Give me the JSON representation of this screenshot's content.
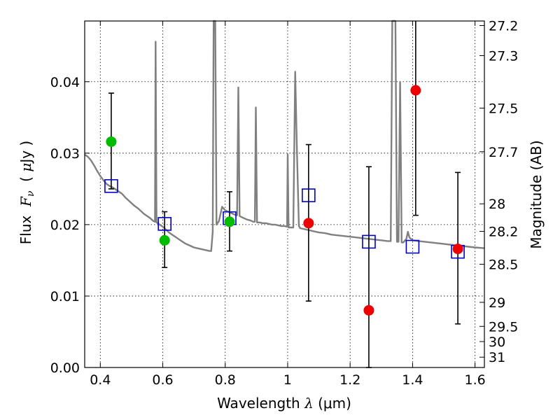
{
  "chart_data": {
    "type": "scatter",
    "xlabel": {
      "prefix": "Wavelength ",
      "symbol": "λ",
      "unit": " (μm)"
    },
    "ylabel": {
      "prefix": "Flux  ",
      "symbol": "F",
      "subscript": "ν",
      "open": "  ( ",
      "mu": "μ",
      "unit": "Jy )"
    },
    "y2label": "Magnitude (AB)",
    "xlim": [
      0.35,
      1.63
    ],
    "ylim": [
      0.0,
      0.0485
    ],
    "grid": true,
    "colors": {
      "spectrum": "#808080",
      "model": "#0000cc",
      "green": "#00bb00",
      "red": "#ee0000",
      "errorbar": "#000000"
    },
    "x_ticks": [
      {
        "value": 0.4,
        "label": "0.4"
      },
      {
        "value": 0.6,
        "label": "0.6"
      },
      {
        "value": 0.8,
        "label": "0.8"
      },
      {
        "value": 1.0,
        "label": "1"
      },
      {
        "value": 1.2,
        "label": "1.2"
      },
      {
        "value": 1.4,
        "label": "1.4"
      },
      {
        "value": 1.6,
        "label": "1.6"
      }
    ],
    "y_ticks": [
      {
        "value": 0.0,
        "label": "0.00"
      },
      {
        "value": 0.01,
        "label": "0.01"
      },
      {
        "value": 0.02,
        "label": "0.02"
      },
      {
        "value": 0.03,
        "label": "0.03"
      },
      {
        "value": 0.04,
        "label": "0.04"
      }
    ],
    "magnitude_ticks": [
      {
        "mag": 27.2,
        "label": "27.2"
      },
      {
        "mag": 27.3,
        "label": "27.3"
      },
      {
        "mag": 27.5,
        "label": "27.5"
      },
      {
        "mag": 27.7,
        "label": "27.7"
      },
      {
        "mag": 28.0,
        "label": "28"
      },
      {
        "mag": 28.2,
        "label": "28.2"
      },
      {
        "mag": 28.5,
        "label": "28.5"
      },
      {
        "mag": 29.0,
        "label": "29"
      },
      {
        "mag": 29.5,
        "label": "29.5"
      },
      {
        "mag": 30.0,
        "label": "30"
      },
      {
        "mag": 31.0,
        "label": "31"
      }
    ],
    "model_photometry": [
      {
        "x": 0.435,
        "y": 0.0254
      },
      {
        "x": 0.606,
        "y": 0.0201
      },
      {
        "x": 0.814,
        "y": 0.0209
      },
      {
        "x": 1.067,
        "y": 0.0241
      },
      {
        "x": 1.26,
        "y": 0.0176
      },
      {
        "x": 1.4,
        "y": 0.0169
      },
      {
        "x": 1.545,
        "y": 0.0162
      }
    ],
    "observed_photometry": [
      {
        "x": 0.435,
        "y": 0.0316,
        "yerr_low": 0.025,
        "yerr_high": 0.0384,
        "color": "green"
      },
      {
        "x": 0.606,
        "y": 0.0178,
        "yerr_low": 0.014,
        "yerr_high": 0.0218,
        "color": "green"
      },
      {
        "x": 0.814,
        "y": 0.0204,
        "yerr_low": 0.0163,
        "yerr_high": 0.0246,
        "color": "green"
      },
      {
        "x": 1.067,
        "y": 0.0202,
        "yerr_low": 0.0093,
        "yerr_high": 0.0312,
        "color": "red"
      },
      {
        "x": 1.26,
        "y": 0.008,
        "yerr_low": 0.0,
        "yerr_high": 0.0281,
        "color": "red"
      },
      {
        "x": 1.41,
        "y": 0.0388,
        "yerr_low": 0.0213,
        "yerr_high": 0.0485,
        "color": "red"
      },
      {
        "x": 1.545,
        "y": 0.0166,
        "yerr_low": 0.0061,
        "yerr_high": 0.0273,
        "color": "red"
      }
    ],
    "spectrum": [
      [
        0.35,
        0.0298
      ],
      [
        0.36,
        0.0295
      ],
      [
        0.37,
        0.029
      ],
      [
        0.38,
        0.0283
      ],
      [
        0.39,
        0.0275
      ],
      [
        0.4,
        0.0268
      ],
      [
        0.41,
        0.0262
      ],
      [
        0.42,
        0.0257
      ],
      [
        0.43,
        0.0254
      ],
      [
        0.44,
        0.0252
      ],
      [
        0.45,
        0.0249
      ],
      [
        0.46,
        0.0246
      ],
      [
        0.47,
        0.0243
      ],
      [
        0.48,
        0.0238
      ],
      [
        0.49,
        0.0234
      ],
      [
        0.5,
        0.023
      ],
      [
        0.51,
        0.0226
      ],
      [
        0.52,
        0.0223
      ],
      [
        0.53,
        0.0219
      ],
      [
        0.54,
        0.0215
      ],
      [
        0.55,
        0.0212
      ],
      [
        0.56,
        0.0209
      ],
      [
        0.57,
        0.0205
      ],
      [
        0.575,
        0.0204
      ],
      [
        0.577,
        0.0456
      ],
      [
        0.58,
        0.0203
      ],
      [
        0.59,
        0.02
      ],
      [
        0.6,
        0.0197
      ],
      [
        0.61,
        0.0193
      ],
      [
        0.62,
        0.0189
      ],
      [
        0.63,
        0.0186
      ],
      [
        0.64,
        0.0183
      ],
      [
        0.65,
        0.018
      ],
      [
        0.66,
        0.0177
      ],
      [
        0.67,
        0.0174
      ],
      [
        0.68,
        0.0172
      ],
      [
        0.69,
        0.017
      ],
      [
        0.7,
        0.0168
      ],
      [
        0.71,
        0.0167
      ],
      [
        0.72,
        0.0166
      ],
      [
        0.73,
        0.0165
      ],
      [
        0.74,
        0.0164
      ],
      [
        0.75,
        0.0163
      ],
      [
        0.755,
        0.0163
      ],
      [
        0.76,
        0.019
      ],
      [
        0.763,
        0.0485
      ],
      [
        0.768,
        0.0485
      ],
      [
        0.772,
        0.02
      ],
      [
        0.78,
        0.0205
      ],
      [
        0.79,
        0.0225
      ],
      [
        0.8,
        0.022
      ],
      [
        0.81,
        0.0218
      ],
      [
        0.82,
        0.0216
      ],
      [
        0.83,
        0.0214
      ],
      [
        0.838,
        0.0213
      ],
      [
        0.842,
        0.0392
      ],
      [
        0.846,
        0.0212
      ],
      [
        0.85,
        0.0211
      ],
      [
        0.86,
        0.0209
      ],
      [
        0.87,
        0.0207
      ],
      [
        0.88,
        0.0206
      ],
      [
        0.89,
        0.0204
      ],
      [
        0.895,
        0.0204
      ],
      [
        0.898,
        0.0364
      ],
      [
        0.902,
        0.0203
      ],
      [
        0.91,
        0.0203
      ],
      [
        0.92,
        0.0202
      ],
      [
        0.93,
        0.0202
      ],
      [
        0.94,
        0.0201
      ],
      [
        0.95,
        0.02
      ],
      [
        0.96,
        0.02
      ],
      [
        0.97,
        0.0199
      ],
      [
        0.98,
        0.0198
      ],
      [
        0.99,
        0.0198
      ],
      [
        0.998,
        0.0197
      ],
      [
        1.0,
        0.0298
      ],
      [
        1.003,
        0.0196
      ],
      [
        1.01,
        0.0196
      ],
      [
        1.018,
        0.0196
      ],
      [
        1.024,
        0.0414
      ],
      [
        1.03,
        0.03
      ],
      [
        1.036,
        0.0198
      ],
      [
        1.04,
        0.0195
      ],
      [
        1.05,
        0.0194
      ],
      [
        1.06,
        0.0193
      ],
      [
        1.07,
        0.0192
      ],
      [
        1.08,
        0.0191
      ],
      [
        1.09,
        0.019
      ],
      [
        1.1,
        0.0189
      ],
      [
        1.12,
        0.0188
      ],
      [
        1.14,
        0.0186
      ],
      [
        1.16,
        0.0185
      ],
      [
        1.18,
        0.0184
      ],
      [
        1.2,
        0.0183
      ],
      [
        1.22,
        0.0182
      ],
      [
        1.24,
        0.0181
      ],
      [
        1.26,
        0.018
      ],
      [
        1.28,
        0.0179
      ],
      [
        1.3,
        0.0178
      ],
      [
        1.32,
        0.0177
      ],
      [
        1.33,
        0.0177
      ],
      [
        1.335,
        0.0485
      ],
      [
        1.345,
        0.0485
      ],
      [
        1.35,
        0.0176
      ],
      [
        1.355,
        0.0176
      ],
      [
        1.36,
        0.04
      ],
      [
        1.365,
        0.0175
      ],
      [
        1.37,
        0.0175
      ],
      [
        1.38,
        0.018
      ],
      [
        1.385,
        0.019
      ],
      [
        1.39,
        0.0182
      ],
      [
        1.4,
        0.0178
      ],
      [
        1.42,
        0.0177
      ],
      [
        1.44,
        0.0176
      ],
      [
        1.46,
        0.0175
      ],
      [
        1.48,
        0.0174
      ],
      [
        1.5,
        0.0173
      ],
      [
        1.52,
        0.0172
      ],
      [
        1.54,
        0.0171
      ],
      [
        1.56,
        0.017
      ],
      [
        1.58,
        0.0169
      ],
      [
        1.6,
        0.0168
      ],
      [
        1.63,
        0.0167
      ]
    ]
  }
}
